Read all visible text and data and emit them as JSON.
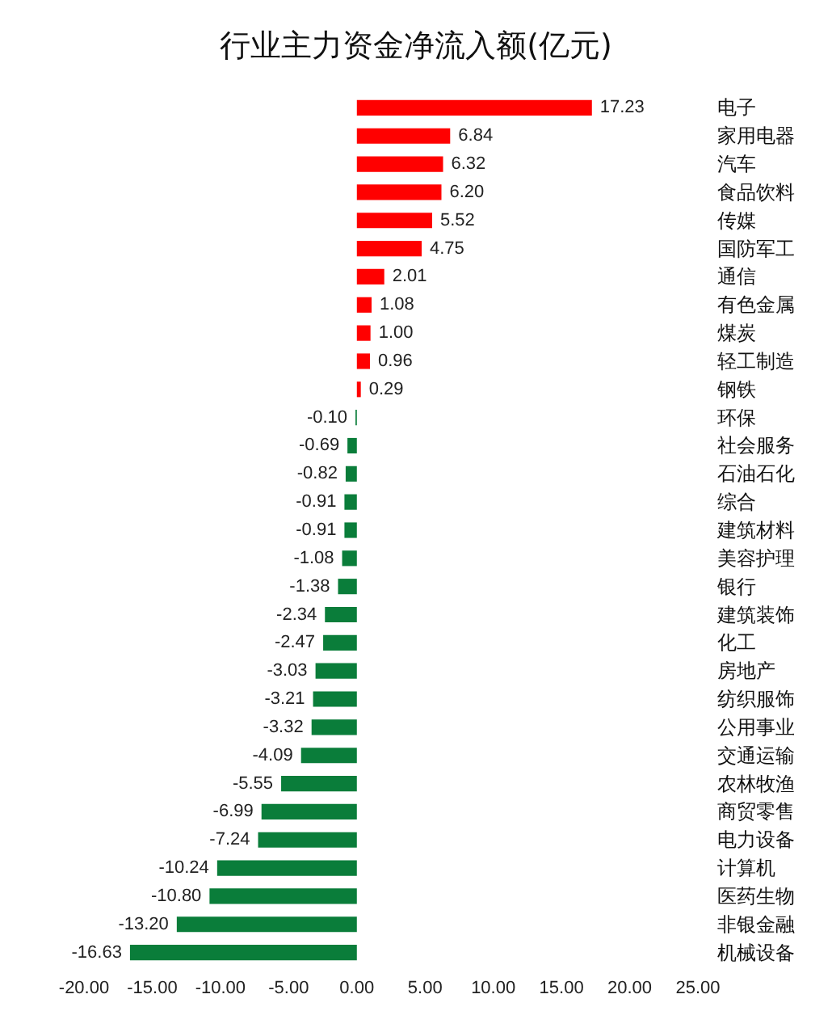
{
  "chart_data": {
    "type": "bar",
    "orientation": "horizontal",
    "title": "行业主力资金净流入额(亿元)",
    "categories": [
      "电子",
      "家用电器",
      "汽车",
      "食品饮料",
      "传媒",
      "国防军工",
      "通信",
      "有色金属",
      "煤炭",
      "轻工制造",
      "钢铁",
      "环保",
      "社会服务",
      "石油石化",
      "综合",
      "建筑材料",
      "美容护理",
      "银行",
      "建筑装饰",
      "化工",
      "房地产",
      "纺织服饰",
      "公用事业",
      "交通运输",
      "农林牧渔",
      "商贸零售",
      "电力设备",
      "计算机",
      "医药生物",
      "非银金融",
      "机械设备"
    ],
    "values": [
      17.23,
      6.84,
      6.32,
      6.2,
      5.52,
      4.75,
      2.01,
      1.08,
      1.0,
      0.96,
      0.29,
      -0.1,
      -0.69,
      -0.82,
      -0.91,
      -0.91,
      -1.08,
      -1.38,
      -2.34,
      -2.47,
      -3.03,
      -3.21,
      -3.32,
      -4.09,
      -5.55,
      -6.99,
      -7.24,
      -10.24,
      -10.8,
      -13.2,
      -16.63
    ],
    "value_labels": [
      "17.23",
      "6.84",
      "6.32",
      "6.20",
      "5.52",
      "4.75",
      "2.01",
      "1.08",
      "1.00",
      "0.96",
      "0.29",
      "-0.10",
      "-0.69",
      "-0.82",
      "-0.91",
      "-0.91",
      "-1.08",
      "-1.38",
      "-2.34",
      "-2.47",
      "-3.03",
      "-3.21",
      "-3.32",
      "-4.09",
      "-5.55",
      "-6.99",
      "-7.24",
      "-10.24",
      "-10.80",
      "-13.20",
      "-16.63"
    ],
    "colors": [
      "#ff0000",
      "#ff0000",
      "#ff0000",
      "#ff0000",
      "#ff0000",
      "#ff0000",
      "#ff0000",
      "#ff0000",
      "#ff0000",
      "#ff0000",
      "#ff0000",
      "#0a7d3a",
      "#0a7d3a",
      "#0a7d3a",
      "#0a7d3a",
      "#0a7d3a",
      "#0a7d3a",
      "#0a7d3a",
      "#0a7d3a",
      "#0a7d3a",
      "#0a7d3a",
      "#0a7d3a",
      "#0a7d3a",
      "#0a7d3a",
      "#0a7d3a",
      "#0a7d3a",
      "#0a7d3a",
      "#0a7d3a",
      "#0a7d3a",
      "#0a7d3a",
      "#0a7d3a"
    ],
    "xlim": [
      -20,
      25
    ],
    "xticks": [
      {
        "value": -20,
        "label": "-20.00"
      },
      {
        "value": -15,
        "label": "-15.00"
      },
      {
        "value": -10,
        "label": "-10.00"
      },
      {
        "value": -5,
        "label": "-5.00"
      },
      {
        "value": 0,
        "label": "0.00"
      },
      {
        "value": 5,
        "label": "5.00"
      },
      {
        "value": 10,
        "label": "10.00"
      },
      {
        "value": 15,
        "label": "15.00"
      },
      {
        "value": 20,
        "label": "20.00"
      },
      {
        "value": 25,
        "label": "25.00"
      }
    ],
    "grid": false
  }
}
